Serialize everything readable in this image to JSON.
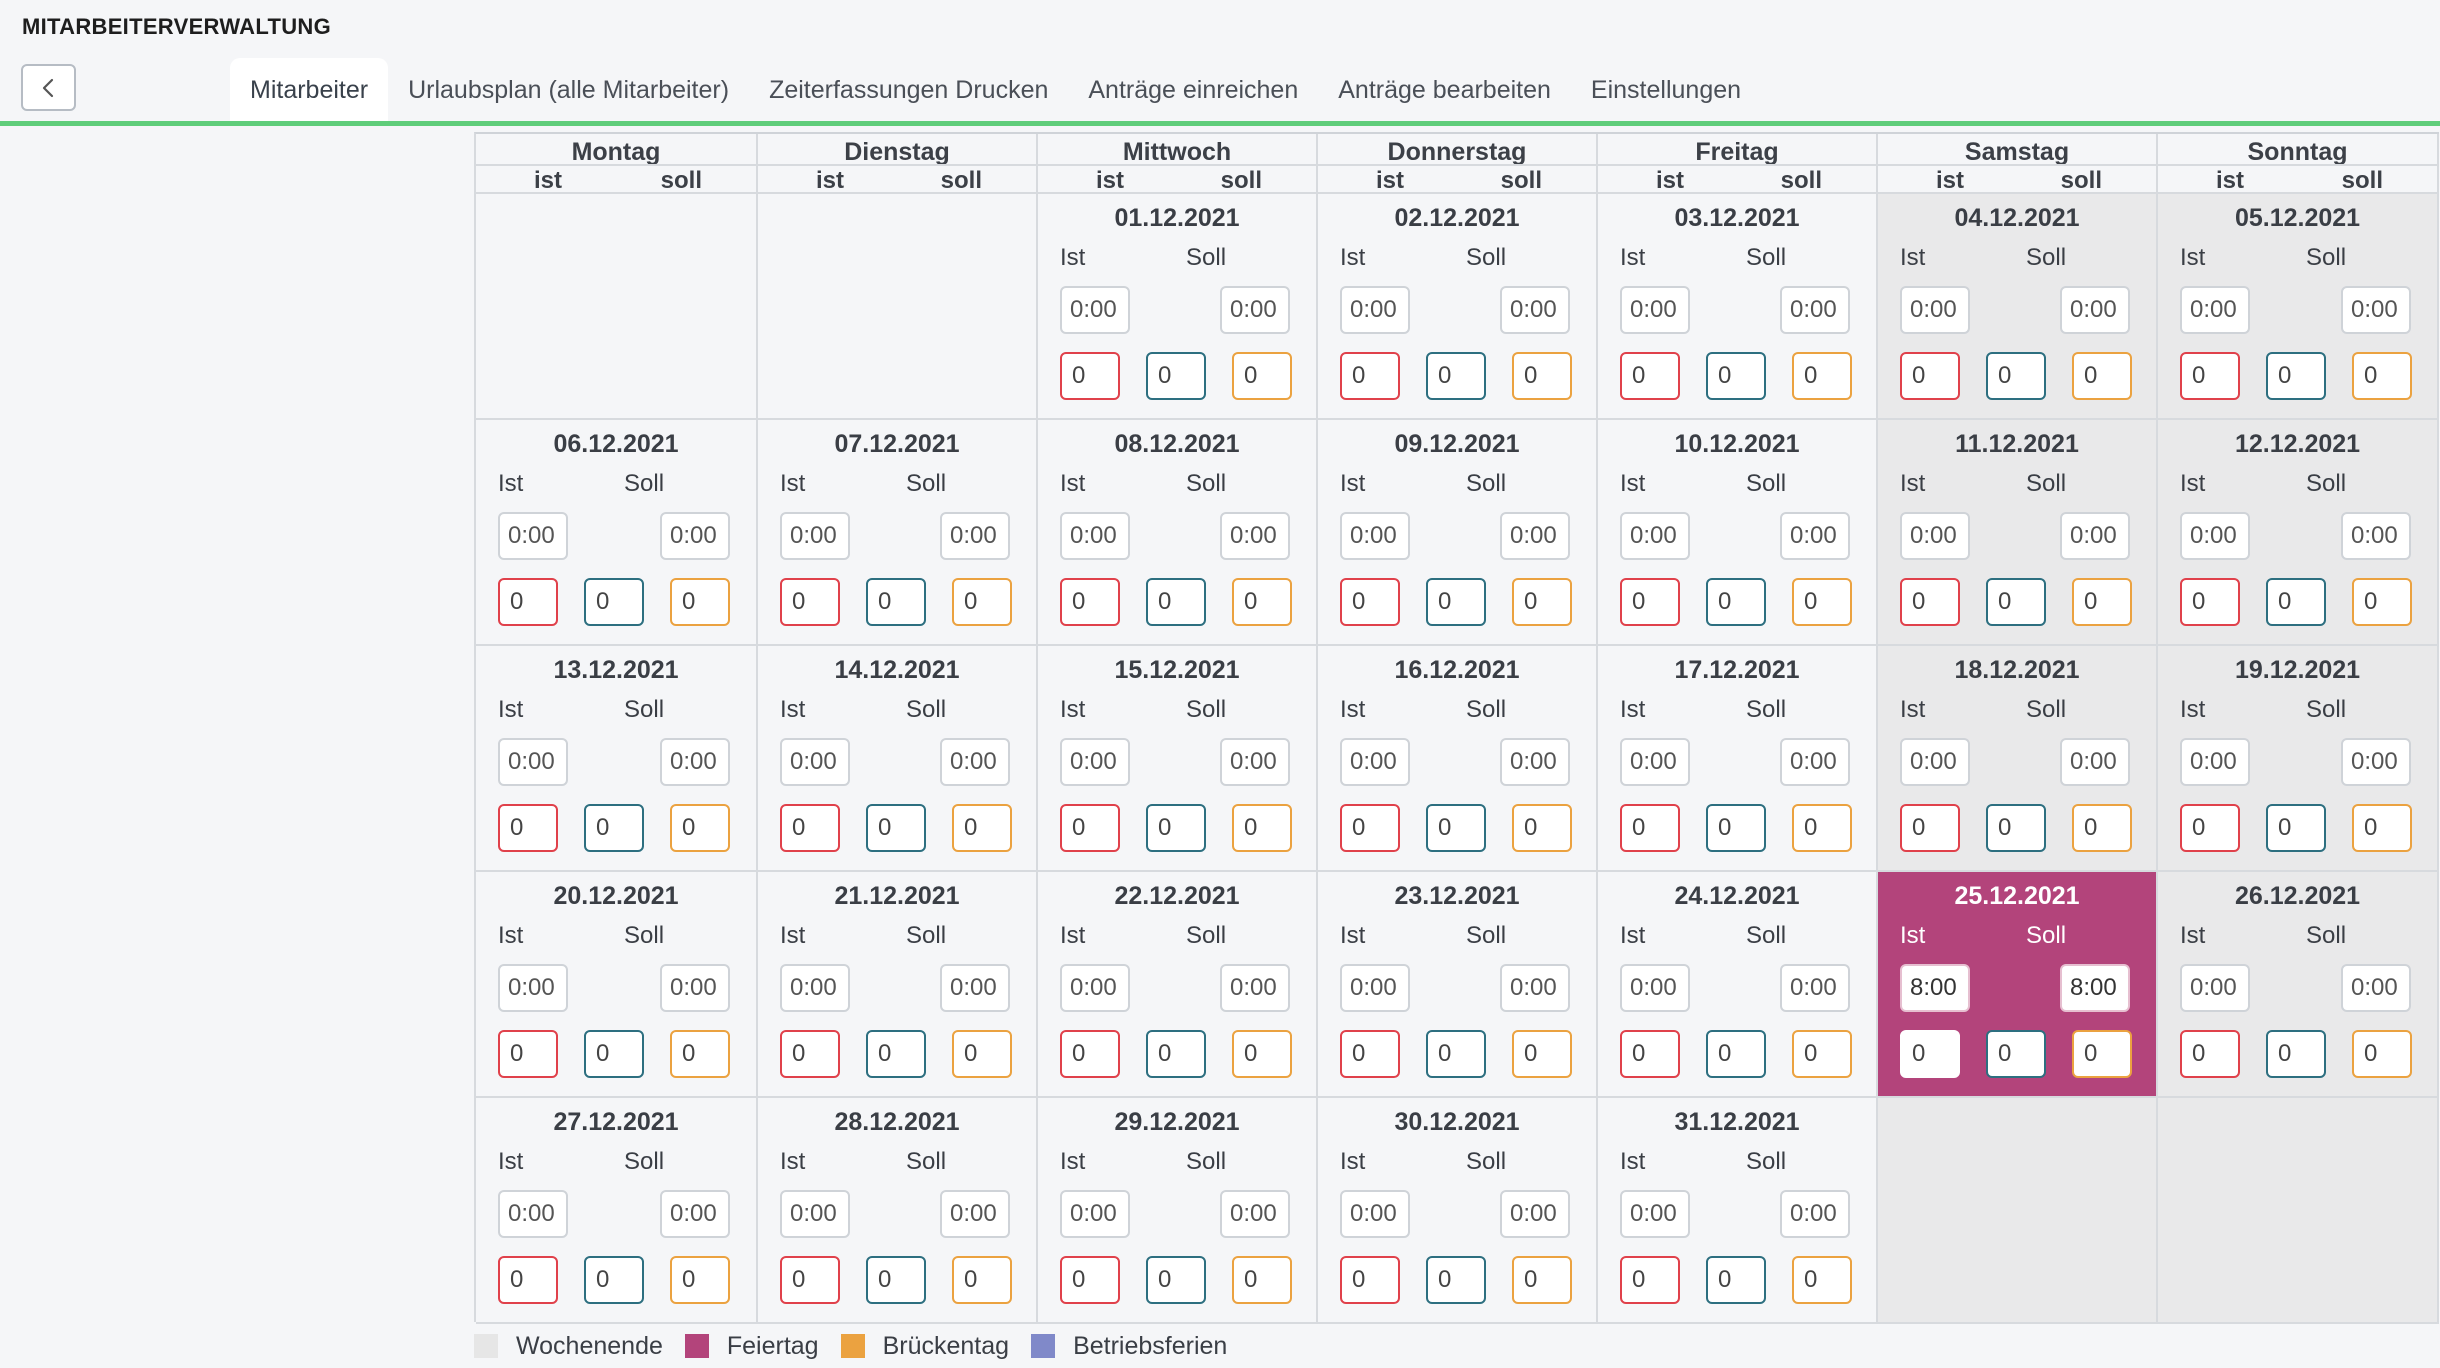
{
  "app": {
    "title": "MITARBEITERVERWALTUNG"
  },
  "nav": {
    "back_icon": "chevron-left-icon",
    "tabs": [
      {
        "label": "Mitarbeiter",
        "active": true
      },
      {
        "label": "Urlaubsplan (alle Mitarbeiter)",
        "active": false
      },
      {
        "label": "Zeiterfassungen Drucken",
        "active": false
      },
      {
        "label": "Anträge einreichen",
        "active": false
      },
      {
        "label": "Anträge bearbeiten",
        "active": false
      },
      {
        "label": "Einstellungen",
        "active": false
      }
    ]
  },
  "calendar": {
    "weekdays": [
      "Montag",
      "Dienstag",
      "Mittwoch",
      "Donnerstag",
      "Freitag",
      "Samstag",
      "Sonntag"
    ],
    "sub_ist": "ist",
    "sub_soll": "soll",
    "label_ist": "Ist",
    "label_soll": "Soll",
    "leading_empty": 2,
    "trailing_empty": 2,
    "days": [
      {
        "date": "01.12.2021",
        "ist": "0:00",
        "soll": "0:00",
        "a": "0",
        "b": "0",
        "c": "0",
        "type": "normal"
      },
      {
        "date": "02.12.2021",
        "ist": "0:00",
        "soll": "0:00",
        "a": "0",
        "b": "0",
        "c": "0",
        "type": "normal"
      },
      {
        "date": "03.12.2021",
        "ist": "0:00",
        "soll": "0:00",
        "a": "0",
        "b": "0",
        "c": "0",
        "type": "normal"
      },
      {
        "date": "04.12.2021",
        "ist": "0:00",
        "soll": "0:00",
        "a": "0",
        "b": "0",
        "c": "0",
        "type": "weekend"
      },
      {
        "date": "05.12.2021",
        "ist": "0:00",
        "soll": "0:00",
        "a": "0",
        "b": "0",
        "c": "0",
        "type": "weekend"
      },
      {
        "date": "06.12.2021",
        "ist": "0:00",
        "soll": "0:00",
        "a": "0",
        "b": "0",
        "c": "0",
        "type": "normal"
      },
      {
        "date": "07.12.2021",
        "ist": "0:00",
        "soll": "0:00",
        "a": "0",
        "b": "0",
        "c": "0",
        "type": "normal"
      },
      {
        "date": "08.12.2021",
        "ist": "0:00",
        "soll": "0:00",
        "a": "0",
        "b": "0",
        "c": "0",
        "type": "normal"
      },
      {
        "date": "09.12.2021",
        "ist": "0:00",
        "soll": "0:00",
        "a": "0",
        "b": "0",
        "c": "0",
        "type": "normal"
      },
      {
        "date": "10.12.2021",
        "ist": "0:00",
        "soll": "0:00",
        "a": "0",
        "b": "0",
        "c": "0",
        "type": "normal"
      },
      {
        "date": "11.12.2021",
        "ist": "0:00",
        "soll": "0:00",
        "a": "0",
        "b": "0",
        "c": "0",
        "type": "weekend"
      },
      {
        "date": "12.12.2021",
        "ist": "0:00",
        "soll": "0:00",
        "a": "0",
        "b": "0",
        "c": "0",
        "type": "weekend"
      },
      {
        "date": "13.12.2021",
        "ist": "0:00",
        "soll": "0:00",
        "a": "0",
        "b": "0",
        "c": "0",
        "type": "normal"
      },
      {
        "date": "14.12.2021",
        "ist": "0:00",
        "soll": "0:00",
        "a": "0",
        "b": "0",
        "c": "0",
        "type": "normal"
      },
      {
        "date": "15.12.2021",
        "ist": "0:00",
        "soll": "0:00",
        "a": "0",
        "b": "0",
        "c": "0",
        "type": "normal"
      },
      {
        "date": "16.12.2021",
        "ist": "0:00",
        "soll": "0:00",
        "a": "0",
        "b": "0",
        "c": "0",
        "type": "normal"
      },
      {
        "date": "17.12.2021",
        "ist": "0:00",
        "soll": "0:00",
        "a": "0",
        "b": "0",
        "c": "0",
        "type": "normal"
      },
      {
        "date": "18.12.2021",
        "ist": "0:00",
        "soll": "0:00",
        "a": "0",
        "b": "0",
        "c": "0",
        "type": "weekend"
      },
      {
        "date": "19.12.2021",
        "ist": "0:00",
        "soll": "0:00",
        "a": "0",
        "b": "0",
        "c": "0",
        "type": "weekend"
      },
      {
        "date": "20.12.2021",
        "ist": "0:00",
        "soll": "0:00",
        "a": "0",
        "b": "0",
        "c": "0",
        "type": "normal"
      },
      {
        "date": "21.12.2021",
        "ist": "0:00",
        "soll": "0:00",
        "a": "0",
        "b": "0",
        "c": "0",
        "type": "normal"
      },
      {
        "date": "22.12.2021",
        "ist": "0:00",
        "soll": "0:00",
        "a": "0",
        "b": "0",
        "c": "0",
        "type": "normal"
      },
      {
        "date": "23.12.2021",
        "ist": "0:00",
        "soll": "0:00",
        "a": "0",
        "b": "0",
        "c": "0",
        "type": "normal"
      },
      {
        "date": "24.12.2021",
        "ist": "0:00",
        "soll": "0:00",
        "a": "0",
        "b": "0",
        "c": "0",
        "type": "normal"
      },
      {
        "date": "25.12.2021",
        "ist": "8:00",
        "soll": "8:00",
        "a": "0",
        "b": "0",
        "c": "0",
        "type": "holiday"
      },
      {
        "date": "26.12.2021",
        "ist": "0:00",
        "soll": "0:00",
        "a": "0",
        "b": "0",
        "c": "0",
        "type": "weekend"
      },
      {
        "date": "27.12.2021",
        "ist": "0:00",
        "soll": "0:00",
        "a": "0",
        "b": "0",
        "c": "0",
        "type": "normal"
      },
      {
        "date": "28.12.2021",
        "ist": "0:00",
        "soll": "0:00",
        "a": "0",
        "b": "0",
        "c": "0",
        "type": "normal"
      },
      {
        "date": "29.12.2021",
        "ist": "0:00",
        "soll": "0:00",
        "a": "0",
        "b": "0",
        "c": "0",
        "type": "normal"
      },
      {
        "date": "30.12.2021",
        "ist": "0:00",
        "soll": "0:00",
        "a": "0",
        "b": "0",
        "c": "0",
        "type": "normal"
      },
      {
        "date": "31.12.2021",
        "ist": "0:00",
        "soll": "0:00",
        "a": "0",
        "b": "0",
        "c": "0",
        "type": "normal"
      }
    ]
  },
  "legend": [
    {
      "label": "Wochenende",
      "color": "#e6e6e6"
    },
    {
      "label": "Feiertag",
      "color": "#b3447b"
    },
    {
      "label": "Brückentag",
      "color": "#eba240"
    },
    {
      "label": "Betriebsferien",
      "color": "#8089c9"
    }
  ],
  "colors": {
    "accent_line": "#5fcd7a",
    "weekend_bg": "#e9e9ea",
    "holiday_bg": "#b3447b",
    "box_red": "#e0414b",
    "box_teal": "#2d6f80",
    "box_orange": "#eba240"
  }
}
